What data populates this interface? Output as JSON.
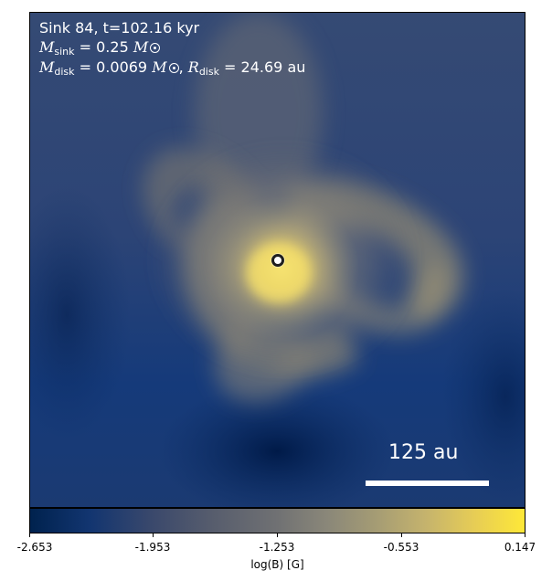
{
  "annotations": {
    "sink_label": "Sink 84, t=102.16 kyr",
    "sink_mass": {
      "symbol": "M",
      "subscript": "sink",
      "value": "0.25"
    },
    "disk": {
      "mass_symbol": "M",
      "mass_subscript": "disk",
      "mass_value": "0.0069",
      "radius_symbol": "R",
      "radius_subscript": "disk",
      "radius_value": "24.69",
      "radius_unit": "au"
    }
  },
  "scale_bar": {
    "label": "125 au"
  },
  "colorbar": {
    "label": "log(B) [G]",
    "ticks": [
      "-2.653",
      "-1.953",
      "-1.253",
      "-0.553",
      "0.147"
    ],
    "colormap": "cividis"
  },
  "colors": {
    "low": "#00224e",
    "high": "#fee838"
  }
}
